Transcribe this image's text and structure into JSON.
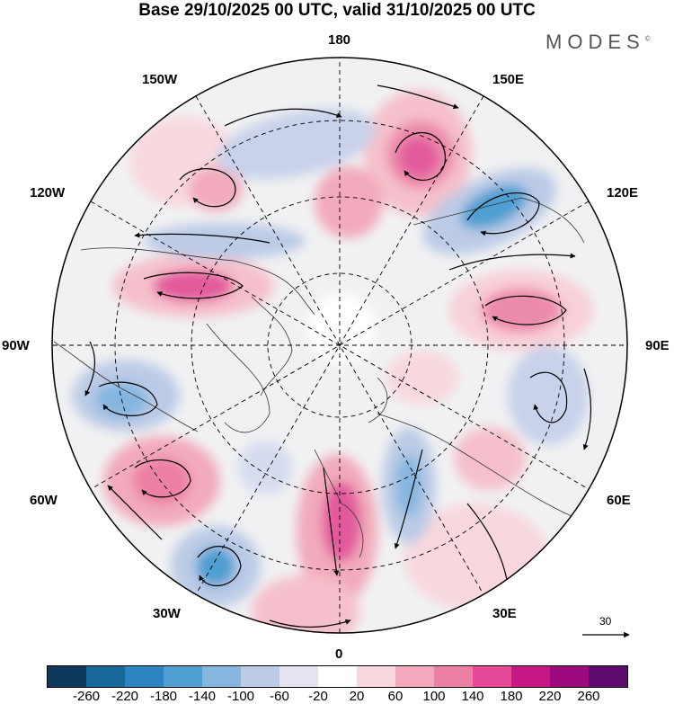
{
  "title": "Base 29/10/2025 00 UTC, valid 31/10/2025 00 UTC",
  "brand": "MODES",
  "brand_mark": "©",
  "longitude_labels": {
    "top": "180",
    "top_left": "150W",
    "top_right": "150E",
    "upper_left": "120W",
    "upper_right": "120E",
    "left": "90W",
    "right": "90E",
    "lower_left": "60W",
    "lower_right": "60E",
    "bottom_left": "30W",
    "bottom_right": "30E",
    "bottom": "0"
  },
  "reference_vector": "30",
  "colorbar": {
    "colors": [
      "#0d3a5c",
      "#17679a",
      "#2b85c2",
      "#4f9fd2",
      "#86b6e0",
      "#bccbe6",
      "#e3e3f1",
      "#ffffff",
      "#f8d8de",
      "#f2aabc",
      "#ec7fa4",
      "#e44a98",
      "#c51883",
      "#9c0a7d",
      "#5e0a6e"
    ],
    "ticks": [
      "-260",
      "-220",
      "-180",
      "-140",
      "-100",
      "-60",
      "-20",
      "20",
      "60",
      "100",
      "140",
      "180",
      "220",
      "260"
    ]
  },
  "colors": {
    "land": "#eeeeee",
    "ocean": "#f2f2f4",
    "grid": "#000000"
  }
}
